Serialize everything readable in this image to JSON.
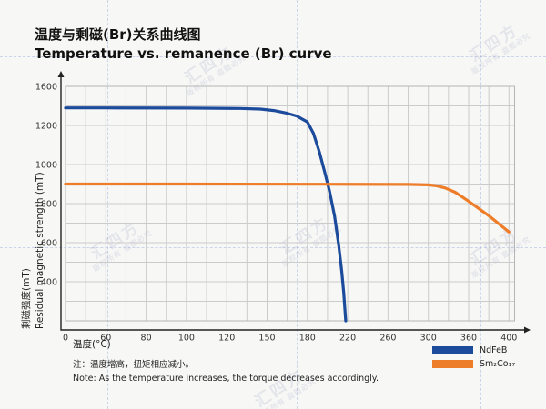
{
  "page": {
    "title_zh": "温度与剩磁(Br)关系曲线图",
    "title_en": "Temperature vs. remanence (Br) curve"
  },
  "chart_data": {
    "type": "line",
    "title": "温度与剩磁(Br)关系曲线图",
    "title_en": "Temperature vs. remanence (Br) curve",
    "xlabel": "温度(°C)",
    "ylabel_zh": "剩磁强度(mT)",
    "ylabel_en": "Residual magnetic strength (mT)",
    "x_ticks": [
      0,
      60,
      80,
      100,
      120,
      150,
      180,
      220,
      260,
      300,
      360,
      400
    ],
    "y_tick_labels": [
      1600,
      1200,
      1000,
      800,
      600,
      400
    ],
    "grid": true,
    "legend_position": "bottom-right",
    "series": [
      {
        "name": "NdFeB",
        "color": "#1c4b9c",
        "points": [
          [
            0,
            1380
          ],
          [
            60,
            1380
          ],
          [
            100,
            1378
          ],
          [
            130,
            1374
          ],
          [
            145,
            1367
          ],
          [
            155,
            1353
          ],
          [
            165,
            1325
          ],
          [
            172,
            1297
          ],
          [
            180,
            1235
          ],
          [
            186,
            1160
          ],
          [
            192,
            1062
          ],
          [
            197,
            965
          ],
          [
            202,
            862
          ],
          [
            207,
            735
          ],
          [
            211,
            590
          ],
          [
            214,
            455
          ],
          [
            216,
            345
          ],
          [
            218,
            200
          ]
        ]
      },
      {
        "name": "Sm₂Co₁₇",
        "color": "#ee7d2a",
        "points": [
          [
            0,
            900
          ],
          [
            100,
            900
          ],
          [
            200,
            899
          ],
          [
            280,
            898
          ],
          [
            300,
            896
          ],
          [
            312,
            891
          ],
          [
            325,
            880
          ],
          [
            340,
            858
          ],
          [
            360,
            812
          ],
          [
            380,
            738
          ],
          [
            400,
            655
          ]
        ]
      }
    ]
  },
  "note": {
    "zh": "注：温度增高，扭矩相应减小。",
    "en": "Note: As the temperature increases, the torque decreases accordingly."
  },
  "watermark": {
    "brand": "汇四方",
    "notice": "版权所有 盗图必究"
  }
}
